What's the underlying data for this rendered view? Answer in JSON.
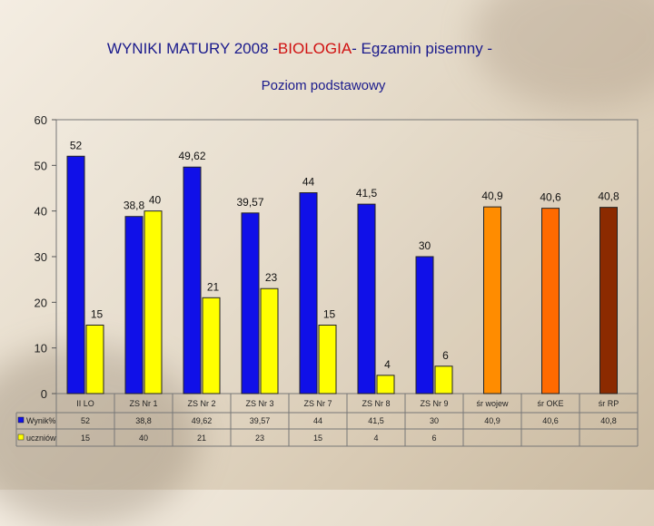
{
  "title_parts": [
    "WYNIKI MATURY 2008 -",
    "BIOLOGIA",
    "- Egzamin pisemny -"
  ],
  "subtitle": "Poziom podstawowy",
  "colors": {
    "wynik": "#1010e8",
    "uczniow": "#ffff00",
    "woj": "#ff8c00",
    "oke": "#ff6a00",
    "rp": "#8b2a00",
    "title": "#1a1a8c",
    "title_highlight": "#d01010"
  },
  "chart_data": {
    "type": "bar",
    "title": "WYNIKI MATURY 2008 -BIOLOGIA- Egzamin pisemny -",
    "subtitle": "Poziom podstawowy",
    "ylim": [
      0,
      60
    ],
    "yticks": [
      0,
      10,
      20,
      30,
      40,
      50,
      60
    ],
    "grid": false,
    "categories": [
      "II LO",
      "ZS Nr 1",
      "ZS Nr 2",
      "ZS Nr 3",
      "ZS Nr 7",
      "ZS Nr 8",
      "ZS Nr 9",
      "śr wojew",
      "śr OKE",
      "śr RP"
    ],
    "series": [
      {
        "name": "Wynik%",
        "values": [
          52,
          38.8,
          49.62,
          39.57,
          44,
          41.5,
          30,
          40.9,
          40.6,
          40.8
        ]
      },
      {
        "name": "uczniów",
        "values": [
          15,
          40,
          21,
          23,
          15,
          4,
          6,
          null,
          null,
          null
        ]
      }
    ],
    "value_labels": [
      [
        "52",
        "38,8",
        "49,62",
        "39,57",
        "44",
        "41,5",
        "30",
        "40,9",
        "40,6",
        "40,8"
      ],
      [
        "15",
        "40",
        "21",
        "23",
        "15",
        "4",
        "6",
        "",
        "",
        ""
      ]
    ],
    "table_rows": [
      [
        "52",
        "38,8",
        "49,62",
        "39,57",
        "44",
        "41,5",
        "30",
        "40,9",
        "40,6",
        "40,8"
      ],
      [
        "15",
        "40",
        "21",
        "23",
        "15",
        "4",
        "6",
        "",
        "",
        ""
      ]
    ]
  }
}
